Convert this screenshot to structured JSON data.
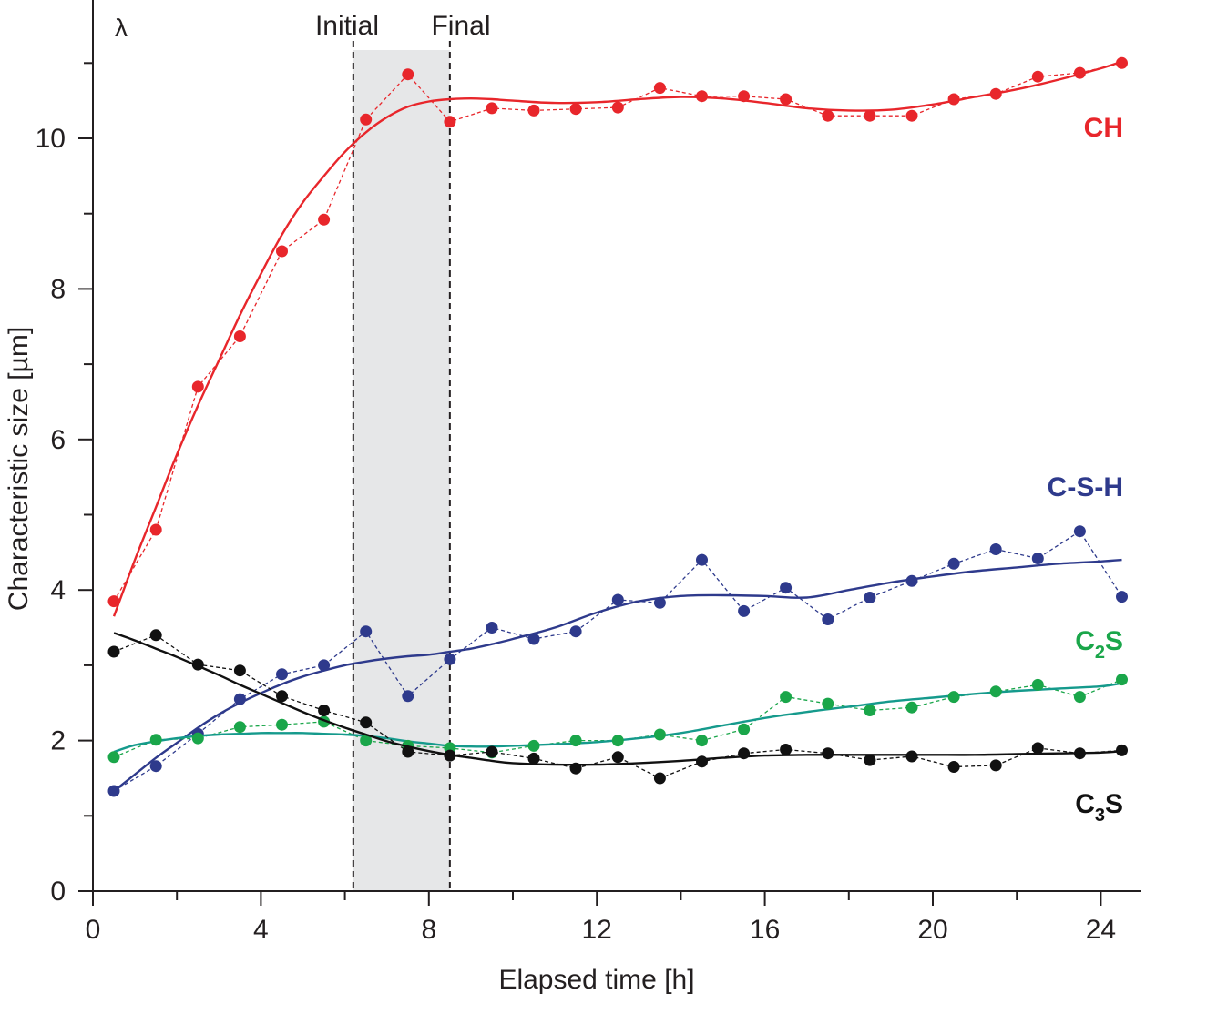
{
  "chart_data": {
    "type": "scatter",
    "corner_label": "λ",
    "xlabel": "Elapsed time [h]",
    "ylabel": "Characteristic size [µm]",
    "xlim": [
      0,
      25
    ],
    "ylim": [
      0,
      12
    ],
    "x_ticks": [
      0,
      4,
      8,
      12,
      16,
      20,
      24
    ],
    "y_ticks": [
      0,
      2,
      4,
      6,
      8,
      10
    ],
    "grid": false,
    "setting_window": {
      "start": 6.2,
      "end": 8.5,
      "initial_label": "Initial",
      "final_label": "Final"
    },
    "x": [
      0.5,
      1.5,
      2.5,
      3.5,
      4.5,
      5.5,
      6.5,
      7.5,
      8.5,
      9.5,
      10.5,
      11.5,
      12.5,
      13.5,
      14.5,
      15.5,
      16.5,
      17.5,
      18.5,
      19.5,
      20.5,
      21.5,
      22.5,
      23.5,
      24.5
    ],
    "series": [
      {
        "name": "CH",
        "label_main": "CH",
        "label_sub": "",
        "label_after": "",
        "color": "#e8262b",
        "values": [
          3.85,
          4.8,
          6.7,
          7.37,
          8.5,
          8.92,
          10.25,
          10.85,
          10.22,
          10.4,
          10.37,
          10.39,
          10.41,
          10.67,
          10.56,
          10.56,
          10.52,
          10.3,
          10.3,
          10.3,
          10.52,
          10.59,
          10.82,
          10.87,
          11.0
        ],
        "fit_x": [
          0.5,
          1,
          1.5,
          2,
          2.5,
          3,
          3.5,
          4,
          4.5,
          5,
          5.5,
          6,
          6.5,
          7,
          7.5,
          8,
          8.5,
          9,
          9.5,
          10,
          11,
          12,
          13,
          14,
          15,
          16,
          17,
          18,
          19,
          20,
          21,
          22,
          23,
          24,
          24.5
        ],
        "fit_y": [
          3.65,
          4.4,
          5.1,
          5.8,
          6.45,
          7.05,
          7.65,
          8.2,
          8.72,
          9.15,
          9.5,
          9.82,
          10.08,
          10.28,
          10.42,
          10.49,
          10.52,
          10.53,
          10.52,
          10.5,
          10.47,
          10.48,
          10.52,
          10.55,
          10.53,
          10.47,
          10.4,
          10.37,
          10.38,
          10.45,
          10.55,
          10.65,
          10.78,
          10.93,
          11.02
        ]
      },
      {
        "name": "C-S-H",
        "label_main": "C-S-H",
        "label_sub": "",
        "label_after": "",
        "color": "#2e3a8c",
        "values": [
          1.33,
          1.66,
          2.09,
          2.55,
          2.88,
          3.0,
          3.45,
          2.59,
          3.08,
          3.5,
          3.35,
          3.45,
          3.87,
          3.83,
          4.4,
          3.72,
          4.03,
          3.61,
          3.9,
          4.12,
          4.35,
          4.54,
          4.42,
          4.78,
          3.91
        ],
        "fit_x": [
          0.5,
          1,
          1.5,
          2,
          2.5,
          3,
          3.5,
          4,
          4.5,
          5,
          5.5,
          6,
          6.5,
          7,
          7.5,
          8,
          8.5,
          9,
          9.5,
          10,
          11,
          12,
          13,
          14,
          15,
          16,
          17,
          18,
          19,
          20,
          21,
          22,
          23,
          24,
          24.5
        ],
        "fit_y": [
          1.33,
          1.55,
          1.77,
          1.97,
          2.17,
          2.35,
          2.5,
          2.63,
          2.75,
          2.85,
          2.93,
          3.0,
          3.05,
          3.09,
          3.12,
          3.14,
          3.18,
          3.22,
          3.28,
          3.35,
          3.5,
          3.7,
          3.85,
          3.92,
          3.93,
          3.92,
          3.9,
          4.0,
          4.1,
          4.18,
          4.25,
          4.3,
          4.35,
          4.38,
          4.4
        ]
      },
      {
        "name": "C2S",
        "label_main": "C",
        "label_sub": "2",
        "label_after": "S",
        "color": "#1aa64a",
        "fit_color": "#159a8c",
        "values": [
          1.78,
          2.01,
          2.03,
          2.18,
          2.21,
          2.25,
          2.0,
          1.93,
          1.9,
          1.84,
          1.93,
          2.0,
          2.0,
          2.08,
          2.0,
          2.15,
          2.58,
          2.49,
          2.4,
          2.44,
          2.58,
          2.65,
          2.74,
          2.58,
          2.81
        ],
        "fit_x": [
          0.5,
          1,
          1.5,
          2,
          2.5,
          3,
          3.5,
          4,
          4.5,
          5,
          5.5,
          6,
          6.5,
          7,
          7.5,
          8,
          8.5,
          9,
          9.5,
          10,
          11,
          12,
          13,
          14,
          15,
          16,
          17,
          18,
          19,
          20,
          21,
          22,
          23,
          24,
          24.5
        ],
        "fit_y": [
          1.85,
          1.94,
          1.99,
          2.03,
          2.06,
          2.08,
          2.09,
          2.1,
          2.1,
          2.1,
          2.09,
          2.08,
          2.06,
          2.03,
          1.99,
          1.96,
          1.93,
          1.92,
          1.92,
          1.93,
          1.95,
          1.98,
          2.03,
          2.1,
          2.2,
          2.3,
          2.38,
          2.45,
          2.52,
          2.57,
          2.62,
          2.66,
          2.69,
          2.72,
          2.76
        ]
      },
      {
        "name": "C3S",
        "label_main": "C",
        "label_sub": "3",
        "label_after": "S",
        "color": "#111111",
        "values": [
          3.18,
          3.4,
          3.01,
          2.93,
          2.59,
          2.4,
          2.24,
          1.85,
          1.8,
          1.85,
          1.76,
          1.63,
          1.78,
          1.5,
          1.72,
          1.83,
          1.88,
          1.83,
          1.74,
          1.79,
          1.65,
          1.67,
          1.9,
          1.83,
          1.87
        ],
        "fit_x": [
          0.5,
          1,
          1.5,
          2,
          2.5,
          3,
          3.5,
          4,
          4.5,
          5,
          5.5,
          6,
          6.5,
          7,
          7.5,
          8,
          8.5,
          9,
          9.5,
          10,
          11,
          12,
          13,
          14,
          15,
          16,
          17,
          18,
          19,
          20,
          21,
          22,
          23,
          24,
          24.5
        ],
        "fit_y": [
          3.43,
          3.33,
          3.22,
          3.11,
          2.99,
          2.87,
          2.74,
          2.62,
          2.5,
          2.38,
          2.27,
          2.17,
          2.08,
          1.99,
          1.92,
          1.86,
          1.81,
          1.77,
          1.73,
          1.7,
          1.68,
          1.68,
          1.7,
          1.73,
          1.77,
          1.8,
          1.81,
          1.81,
          1.81,
          1.81,
          1.81,
          1.82,
          1.83,
          1.84,
          1.86
        ]
      }
    ]
  }
}
